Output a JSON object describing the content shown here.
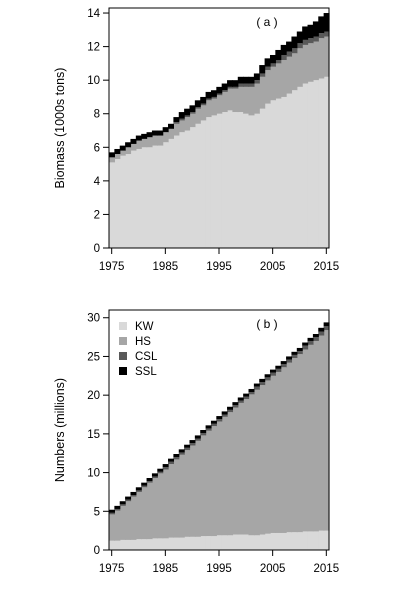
{
  "chart_data": [
    {
      "type": "area",
      "stacked": true,
      "step": true,
      "panel_label": "( a )",
      "ylabel": "Biomass (1000s tons)",
      "xlabel": "",
      "x_tick_labels": [
        "1975",
        "1985",
        "1995",
        "2005",
        "2015"
      ],
      "y_tick_labels": [
        "0",
        "2",
        "4",
        "6",
        "8",
        "10",
        "12",
        "14"
      ],
      "xlim": [
        1975,
        2015
      ],
      "ylim": [
        0,
        14.3
      ],
      "grid": false,
      "legend": "none",
      "x": [
        1975,
        1976,
        1977,
        1978,
        1979,
        1980,
        1981,
        1982,
        1983,
        1984,
        1985,
        1986,
        1987,
        1988,
        1989,
        1990,
        1991,
        1992,
        1993,
        1994,
        1995,
        1996,
        1997,
        1998,
        1999,
        2000,
        2001,
        2002,
        2003,
        2004,
        2005,
        2006,
        2007,
        2008,
        2009,
        2010,
        2011,
        2012,
        2013,
        2014,
        2015
      ],
      "series": [
        {
          "name": "KW",
          "color": "#d9d9d9",
          "values": [
            5.1,
            5.3,
            5.5,
            5.6,
            5.8,
            5.9,
            6.0,
            6.0,
            6.1,
            6.1,
            6.3,
            6.5,
            6.7,
            6.9,
            7.0,
            7.2,
            7.4,
            7.6,
            7.8,
            7.9,
            8.0,
            8.1,
            8.2,
            8.1,
            8.1,
            8.0,
            7.9,
            8.0,
            8.3,
            8.6,
            8.8,
            8.9,
            9.0,
            9.2,
            9.4,
            9.6,
            9.8,
            9.9,
            10.0,
            10.1,
            10.2
          ]
        },
        {
          "name": "HS",
          "color": "#a6a6a6",
          "values": [
            0.3,
            0.3,
            0.3,
            0.4,
            0.4,
            0.5,
            0.5,
            0.6,
            0.6,
            0.6,
            0.6,
            0.6,
            0.7,
            0.7,
            0.8,
            0.8,
            0.9,
            0.9,
            1.0,
            1.0,
            1.1,
            1.2,
            1.3,
            1.4,
            1.5,
            1.6,
            1.7,
            1.8,
            1.9,
            2.0,
            2.0,
            2.1,
            2.2,
            2.2,
            2.2,
            2.3,
            2.3,
            2.3,
            2.3,
            2.4,
            2.4
          ]
        },
        {
          "name": "CSL",
          "color": "#595959",
          "values": [
            0.0,
            0.0,
            0.0,
            0.0,
            0.0,
            0.0,
            0.0,
            0.0,
            0.0,
            0.0,
            0.0,
            0.0,
            0.1,
            0.1,
            0.1,
            0.1,
            0.1,
            0.1,
            0.1,
            0.1,
            0.1,
            0.1,
            0.1,
            0.1,
            0.2,
            0.2,
            0.2,
            0.2,
            0.2,
            0.2,
            0.2,
            0.2,
            0.3,
            0.3,
            0.3,
            0.3,
            0.3,
            0.3,
            0.3,
            0.3,
            0.3
          ]
        },
        {
          "name": "SSL",
          "color": "#000000",
          "values": [
            0.3,
            0.3,
            0.3,
            0.3,
            0.3,
            0.3,
            0.3,
            0.3,
            0.3,
            0.3,
            0.3,
            0.3,
            0.3,
            0.4,
            0.4,
            0.4,
            0.4,
            0.4,
            0.4,
            0.4,
            0.4,
            0.4,
            0.4,
            0.4,
            0.4,
            0.4,
            0.4,
            0.4,
            0.5,
            0.5,
            0.5,
            0.6,
            0.6,
            0.6,
            0.7,
            0.7,
            0.8,
            0.8,
            0.9,
            1.0,
            1.1
          ]
        }
      ]
    },
    {
      "type": "area",
      "stacked": true,
      "step": true,
      "panel_label": "( b )",
      "ylabel": "Numbers (millions)",
      "xlabel": "",
      "x_tick_labels": [
        "1975",
        "1985",
        "1995",
        "2005",
        "2015"
      ],
      "y_tick_labels": [
        "0",
        "5",
        "10",
        "15",
        "20",
        "25",
        "30"
      ],
      "xlim": [
        1975,
        2015
      ],
      "ylim": [
        0,
        31
      ],
      "grid": false,
      "legend": "top-left",
      "x": [
        1975,
        1976,
        1977,
        1978,
        1979,
        1980,
        1981,
        1982,
        1983,
        1984,
        1985,
        1986,
        1987,
        1988,
        1989,
        1990,
        1991,
        1992,
        1993,
        1994,
        1995,
        1996,
        1997,
        1998,
        1999,
        2000,
        2001,
        2002,
        2003,
        2004,
        2005,
        2006,
        2007,
        2008,
        2009,
        2010,
        2011,
        2012,
        2013,
        2014,
        2015
      ],
      "series": [
        {
          "name": "KW",
          "color": "#d9d9d9",
          "values": [
            1.2,
            1.2,
            1.3,
            1.3,
            1.3,
            1.4,
            1.4,
            1.4,
            1.5,
            1.5,
            1.5,
            1.6,
            1.6,
            1.6,
            1.7,
            1.7,
            1.7,
            1.8,
            1.8,
            1.8,
            1.9,
            1.9,
            1.9,
            2.0,
            2.0,
            2.0,
            1.9,
            1.9,
            2.0,
            2.1,
            2.2,
            2.2,
            2.2,
            2.3,
            2.3,
            2.3,
            2.4,
            2.4,
            2.4,
            2.5,
            2.5
          ]
        },
        {
          "name": "HS",
          "color": "#a6a6a6",
          "values": [
            3.4,
            3.9,
            4.4,
            5.0,
            5.6,
            6.1,
            6.7,
            7.3,
            7.8,
            8.4,
            8.9,
            9.5,
            10.1,
            10.7,
            11.2,
            11.8,
            12.4,
            13.0,
            13.6,
            14.2,
            14.7,
            15.3,
            15.9,
            16.4,
            17.0,
            17.5,
            18.2,
            18.8,
            19.3,
            19.8,
            20.3,
            20.8,
            21.4,
            21.9,
            22.5,
            23.0,
            23.5,
            24.1,
            24.6,
            25.2,
            25.9
          ]
        },
        {
          "name": "CSL",
          "color": "#595959",
          "values": [
            0.2,
            0.2,
            0.2,
            0.2,
            0.2,
            0.2,
            0.2,
            0.2,
            0.2,
            0.2,
            0.3,
            0.3,
            0.3,
            0.3,
            0.3,
            0.3,
            0.3,
            0.3,
            0.3,
            0.3,
            0.3,
            0.3,
            0.3,
            0.3,
            0.3,
            0.3,
            0.3,
            0.4,
            0.4,
            0.4,
            0.4,
            0.4,
            0.4,
            0.4,
            0.4,
            0.4,
            0.5,
            0.5,
            0.5,
            0.5,
            0.5
          ]
        },
        {
          "name": "SSL",
          "color": "#000000",
          "values": [
            0.4,
            0.4,
            0.4,
            0.4,
            0.4,
            0.4,
            0.4,
            0.4,
            0.4,
            0.4,
            0.4,
            0.4,
            0.4,
            0.4,
            0.4,
            0.4,
            0.4,
            0.4,
            0.4,
            0.4,
            0.4,
            0.4,
            0.4,
            0.4,
            0.4,
            0.4,
            0.4,
            0.4,
            0.4,
            0.4,
            0.4,
            0.4,
            0.4,
            0.4,
            0.4,
            0.4,
            0.4,
            0.4,
            0.4,
            0.5,
            0.5
          ]
        }
      ]
    }
  ]
}
